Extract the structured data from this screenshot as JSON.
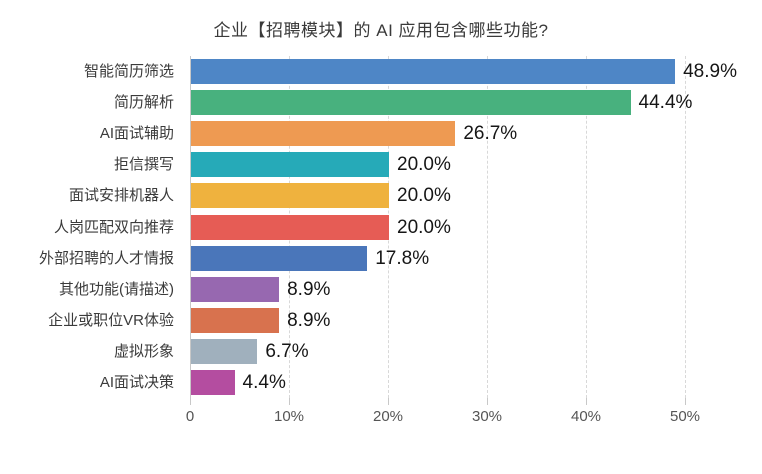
{
  "chart_data": {
    "type": "bar",
    "orientation": "horizontal",
    "title": "企业【招聘模块】的 AI 应用包含哪些功能?",
    "categories": [
      "智能简历筛选",
      "简历解析",
      "AI面试辅助",
      "拒信撰写",
      "面试安排机器人",
      "人岗匹配双向推荐",
      "外部招聘的人才情报",
      "其他功能(请描述)",
      "企业或职位VR体验",
      "虚拟形象",
      "AI面试决策"
    ],
    "values": [
      48.9,
      44.4,
      26.7,
      20.0,
      20.0,
      20.0,
      17.8,
      8.9,
      8.9,
      6.7,
      4.4
    ],
    "data_labels": [
      "48.9%",
      "44.4%",
      "26.7%",
      "20.0%",
      "20.0%",
      "20.0%",
      "17.8%",
      "8.9%",
      "8.9%",
      "6.7%",
      "4.4%"
    ],
    "bar_colors": [
      "#4e86c6",
      "#48b17e",
      "#ee9a52",
      "#26aab8",
      "#efb23e",
      "#e65c55",
      "#4a76ba",
      "#9768b0",
      "#d8724e",
      "#a0b0bd",
      "#b44da0"
    ],
    "xlabel": "",
    "ylabel": "",
    "xlim": [
      0,
      53
    ],
    "x_ticks": [
      {
        "label": "0",
        "value": 0
      },
      {
        "label": "10%",
        "value": 10
      },
      {
        "label": "20%",
        "value": 20
      },
      {
        "label": "30%",
        "value": 30
      },
      {
        "label": "40%",
        "value": 40
      },
      {
        "label": "50%",
        "value": 50
      }
    ],
    "grid": "vertical-dashed",
    "legend": "none"
  }
}
